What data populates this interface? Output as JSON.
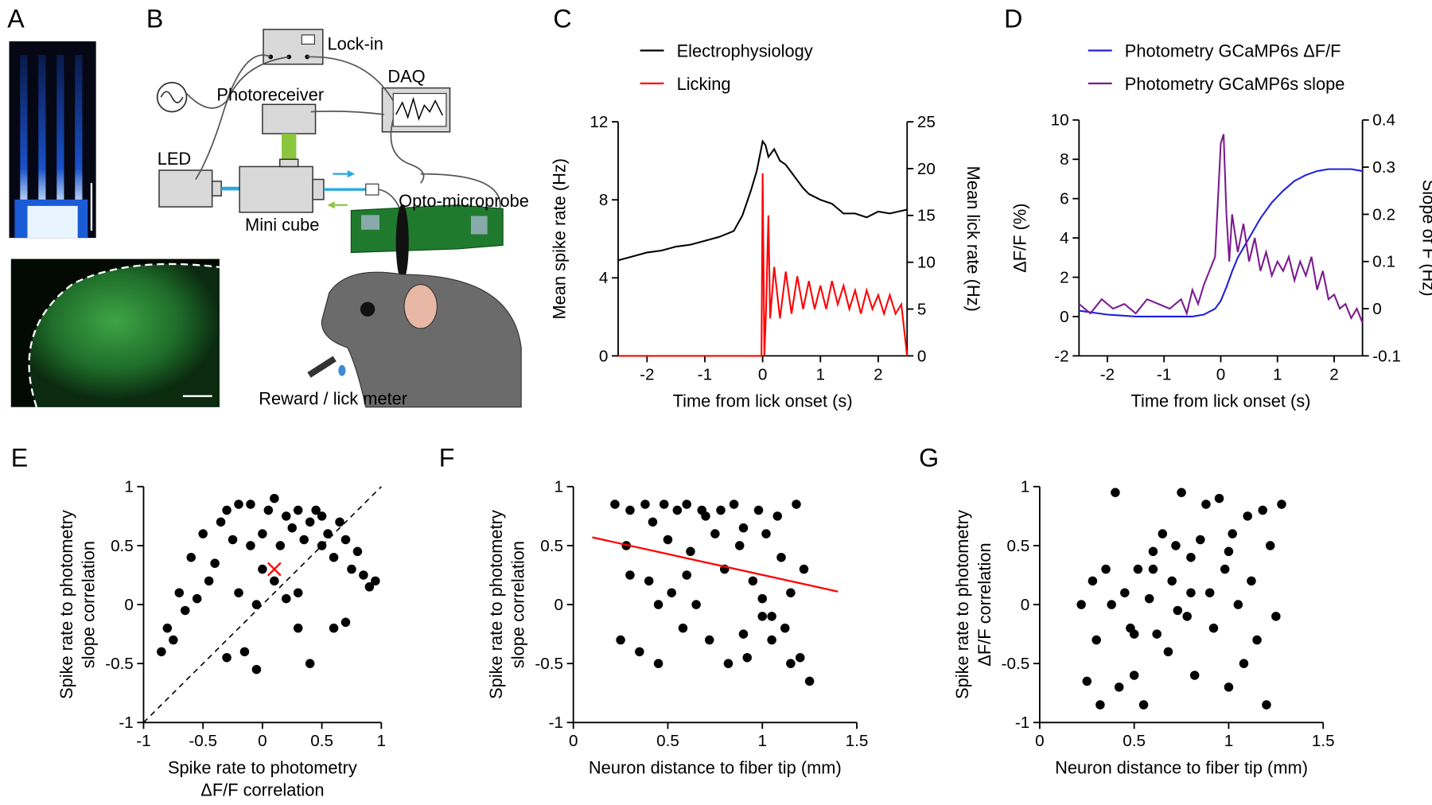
{
  "panels": [
    "A",
    "B",
    "C",
    "D",
    "E",
    "F",
    "G"
  ],
  "diagram": {
    "lockin": "Lock-in",
    "daq": "DAQ",
    "photoreceiver": "Photoreceiver",
    "led": "LED",
    "minicube": "Mini cube",
    "probe": "Opto-microprobe",
    "reward": "Reward / lick meter"
  },
  "chart_data": [
    {
      "type": "line",
      "xlabel": "Time from lick onset (s)",
      "ylabel": "Mean spike rate (Hz)",
      "y2label": "Mean lick rate (Hz)",
      "xlim": [
        -2.5,
        2.5
      ],
      "xticks": [
        -2,
        -1,
        0,
        1,
        2
      ],
      "ylim": [
        0,
        12
      ],
      "yticks": [
        0,
        4,
        8,
        12
      ],
      "y2lim": [
        0,
        25
      ],
      "y2ticks": [
        0,
        5,
        10,
        15,
        20,
        25
      ],
      "series": [
        {
          "name": "Electrophysiology",
          "color": "#000000",
          "x": [
            -2.5,
            -2.25,
            -2,
            -1.75,
            -1.5,
            -1.25,
            -1,
            -0.75,
            -0.5,
            -0.35,
            -0.2,
            -0.1,
            0,
            0.05,
            0.1,
            0.2,
            0.3,
            0.4,
            0.5,
            0.6,
            0.7,
            0.8,
            1.0,
            1.2,
            1.4,
            1.6,
            1.8,
            2.0,
            2.2,
            2.5
          ],
          "values": [
            4.9,
            5.1,
            5.3,
            5.4,
            5.6,
            5.7,
            5.9,
            6.1,
            6.4,
            7.2,
            8.5,
            9.5,
            11,
            10.8,
            10.2,
            10.6,
            10.0,
            9.8,
            9.4,
            9.0,
            8.6,
            8.3,
            8.0,
            7.8,
            7.3,
            7.3,
            7.1,
            7.4,
            7.3,
            7.5
          ]
        },
        {
          "name": "Licking",
          "color": "#ff0000",
          "axis": "y2",
          "x": [
            -2.5,
            -0.02,
            0,
            0.03,
            0.06,
            0.1,
            0.13,
            0.2,
            0.3,
            0.4,
            0.5,
            0.6,
            0.7,
            0.8,
            0.9,
            1.0,
            1.1,
            1.2,
            1.3,
            1.4,
            1.5,
            1.6,
            1.7,
            1.8,
            1.9,
            2.0,
            2.1,
            2.2,
            2.3,
            2.4,
            2.5
          ],
          "values": [
            0,
            0,
            19.5,
            0,
            5,
            15,
            4,
            9.5,
            4,
            9,
            4.5,
            8.5,
            5,
            8,
            5,
            7.5,
            5,
            8,
            5.5,
            7.5,
            5,
            7,
            4.5,
            7,
            5,
            6.5,
            4.5,
            6.5,
            4.5,
            5.5,
            0
          ]
        }
      ]
    },
    {
      "type": "line",
      "xlabel": "Time from lick onset (s)",
      "ylabel": "ΔF/F (%)",
      "y2label": "Slope of F (Hz)",
      "xlim": [
        -2.5,
        2.5
      ],
      "xticks": [
        -2,
        -1,
        0,
        1,
        2
      ],
      "ylim": [
        -2,
        10
      ],
      "yticks": [
        -2,
        0,
        2,
        4,
        6,
        8,
        10
      ],
      "y2lim": [
        -0.1,
        0.4
      ],
      "y2ticks": [
        -0.1,
        0,
        0.1,
        0.2,
        0.3,
        0.4
      ],
      "series": [
        {
          "name": "Photometry GCaMP6s ΔF/F",
          "color": "#1f1fe0",
          "x": [
            -2.5,
            -2,
            -1.5,
            -1,
            -0.5,
            -0.3,
            -0.1,
            0,
            0.1,
            0.2,
            0.3,
            0.5,
            0.7,
            0.9,
            1.1,
            1.3,
            1.5,
            1.7,
            1.9,
            2.1,
            2.3,
            2.5
          ],
          "values": [
            0.3,
            0.1,
            0,
            0,
            0,
            0.1,
            0.4,
            0.8,
            1.5,
            2.3,
            3,
            4,
            5,
            5.8,
            6.4,
            6.9,
            7.2,
            7.4,
            7.5,
            7.5,
            7.5,
            7.4
          ]
        },
        {
          "name": "Photometry GCaMP6s slope",
          "color": "#7b1a8f",
          "axis": "y2",
          "x": [
            -2.5,
            -2.3,
            -2.1,
            -1.9,
            -1.7,
            -1.5,
            -1.3,
            -1.1,
            -0.9,
            -0.7,
            -0.6,
            -0.5,
            -0.4,
            -0.3,
            -0.2,
            -0.1,
            0,
            0.05,
            0.1,
            0.15,
            0.2,
            0.3,
            0.4,
            0.5,
            0.6,
            0.7,
            0.8,
            0.9,
            1.0,
            1.1,
            1.2,
            1.3,
            1.4,
            1.5,
            1.6,
            1.7,
            1.8,
            1.9,
            2.0,
            2.1,
            2.2,
            2.3,
            2.4,
            2.5
          ],
          "values": [
            0.01,
            -0.01,
            0.02,
            0,
            0.01,
            -0.01,
            0.02,
            0.01,
            0,
            0.02,
            -0.01,
            0.04,
            0.01,
            0.05,
            0.08,
            0.11,
            0.35,
            0.37,
            0.2,
            0.1,
            0.2,
            0.12,
            0.18,
            0.1,
            0.15,
            0.08,
            0.12,
            0.07,
            0.1,
            0.08,
            0.11,
            0.06,
            0.1,
            0.07,
            0.11,
            0.04,
            0.08,
            0.02,
            0.03,
            0,
            0.01,
            -0.02,
            0,
            -0.03
          ]
        }
      ]
    },
    {
      "type": "scatter",
      "xlabel": [
        "Spike rate to photometry",
        "ΔF/F correlation"
      ],
      "ylabel": [
        "Spike rate to photometry",
        "slope correlation"
      ],
      "xlim": [
        -1,
        1
      ],
      "xticks": [
        -1,
        -0.5,
        0,
        0.5,
        1
      ],
      "ylim": [
        -1,
        1
      ],
      "yticks": [
        -1,
        -0.5,
        0,
        0.5,
        1
      ],
      "color": "#000000",
      "x": [
        -0.85,
        -0.8,
        -0.75,
        -0.7,
        -0.65,
        -0.6,
        -0.55,
        -0.5,
        -0.45,
        -0.4,
        -0.35,
        -0.3,
        -0.3,
        -0.25,
        -0.2,
        -0.2,
        -0.15,
        -0.1,
        -0.1,
        -0.05,
        0,
        0,
        0.05,
        0.1,
        0.1,
        0.15,
        0.2,
        0.2,
        0.25,
        0.3,
        0.3,
        0.35,
        0.4,
        0.4,
        0.45,
        0.5,
        0.5,
        0.55,
        0.6,
        0.6,
        0.65,
        0.7,
        0.7,
        0.75,
        0.8,
        0.85,
        0.9,
        0.95,
        0.3,
        -0.05
      ],
      "values": [
        -0.4,
        -0.2,
        -0.3,
        0.1,
        -0.05,
        0.4,
        0.05,
        0.6,
        0.2,
        0.35,
        0.7,
        0.8,
        -0.45,
        0.55,
        0.1,
        0.85,
        -0.4,
        0.5,
        0.85,
        -0.55,
        0.6,
        0.3,
        0.8,
        0.2,
        0.9,
        0.5,
        0.75,
        0.05,
        0.65,
        0.8,
        -0.2,
        0.55,
        0.7,
        -0.5,
        0.8,
        0.5,
        0.75,
        0.6,
        0.4,
        -0.2,
        0.7,
        0.55,
        -0.15,
        0.3,
        0.45,
        0.25,
        0.15,
        0.2,
        0.1,
        0.0
      ],
      "reference_line": {
        "x": [
          -1,
          1
        ],
        "values": [
          -1,
          1
        ],
        "color": "#000000"
      },
      "highlight": {
        "x": 0.1,
        "y": 0.3,
        "color": "#ff0000"
      }
    },
    {
      "type": "scatter",
      "xlabel": [
        "Neuron distance to fiber tip (mm)"
      ],
      "ylabel": [
        "Spike rate to photometry",
        "slope correlation"
      ],
      "xlim": [
        0,
        1.5
      ],
      "xticks": [
        0,
        0.5,
        1,
        1.5
      ],
      "ylim": [
        -1,
        1
      ],
      "yticks": [
        -1,
        -0.5,
        0,
        0.5,
        1
      ],
      "color": "#000000",
      "x": [
        0.22,
        0.25,
        0.28,
        0.3,
        0.35,
        0.38,
        0.4,
        0.42,
        0.45,
        0.48,
        0.5,
        0.52,
        0.55,
        0.58,
        0.6,
        0.62,
        0.65,
        0.68,
        0.7,
        0.72,
        0.75,
        0.78,
        0.8,
        0.82,
        0.85,
        0.88,
        0.9,
        0.92,
        0.95,
        0.98,
        1.0,
        1.02,
        1.05,
        1.08,
        1.1,
        1.12,
        1.15,
        1.18,
        1.2,
        1.22,
        1.25,
        1.0,
        0.9,
        0.3,
        0.45,
        1.15,
        1.05,
        0.6
      ],
      "values": [
        0.85,
        -0.3,
        0.5,
        0.8,
        -0.4,
        0.85,
        0.2,
        0.7,
        -0.5,
        0.85,
        0.55,
        0.1,
        0.8,
        -0.2,
        0.85,
        0.45,
        0.0,
        0.8,
        0.75,
        -0.3,
        0.6,
        0.8,
        0.3,
        -0.5,
        0.85,
        0.5,
        0.65,
        -0.45,
        0.2,
        0.8,
        -0.1,
        0.6,
        -0.3,
        0.75,
        0.4,
        -0.2,
        0.1,
        0.85,
        -0.45,
        0.3,
        -0.65,
        0.05,
        -0.25,
        0.25,
        0.0,
        -0.5,
        -0.1,
        0.25
      ],
      "fit_line": {
        "x": [
          0.1,
          1.4
        ],
        "values": [
          0.57,
          0.11
        ],
        "color": "#ff0000"
      }
    },
    {
      "type": "scatter",
      "xlabel": [
        "Neuron distance to fiber tip (mm)"
      ],
      "ylabel": [
        "Spike rate to photometry",
        "ΔF/F correlation"
      ],
      "xlim": [
        0,
        1.5
      ],
      "xticks": [
        0,
        0.5,
        1,
        1.5
      ],
      "ylim": [
        -1,
        1
      ],
      "yticks": [
        -1,
        -0.5,
        0,
        0.5,
        1
      ],
      "color": "#000000",
      "x": [
        0.22,
        0.25,
        0.28,
        0.3,
        0.32,
        0.35,
        0.38,
        0.4,
        0.42,
        0.45,
        0.48,
        0.5,
        0.52,
        0.55,
        0.58,
        0.6,
        0.62,
        0.65,
        0.68,
        0.7,
        0.72,
        0.75,
        0.78,
        0.8,
        0.82,
        0.85,
        0.88,
        0.9,
        0.92,
        0.95,
        0.98,
        1.0,
        1.02,
        1.05,
        1.08,
        1.1,
        1.12,
        1.15,
        1.18,
        1.2,
        1.22,
        1.25,
        1.28,
        0.73,
        0.8,
        1.0,
        0.5,
        0.6
      ],
      "values": [
        0.0,
        -0.65,
        0.2,
        -0.3,
        -0.85,
        0.3,
        0.0,
        0.95,
        -0.7,
        0.1,
        -0.2,
        -0.6,
        0.3,
        -0.85,
        0.05,
        0.45,
        -0.25,
        0.6,
        -0.4,
        0.2,
        0.5,
        0.95,
        -0.1,
        0.4,
        -0.6,
        0.55,
        0.85,
        0.1,
        -0.2,
        0.9,
        0.3,
        -0.7,
        0.6,
        0.0,
        -0.5,
        0.75,
        0.2,
        -0.3,
        0.8,
        -0.85,
        0.5,
        -0.1,
        0.85,
        -0.05,
        0.1,
        0.45,
        -0.25,
        0.3
      ]
    }
  ]
}
